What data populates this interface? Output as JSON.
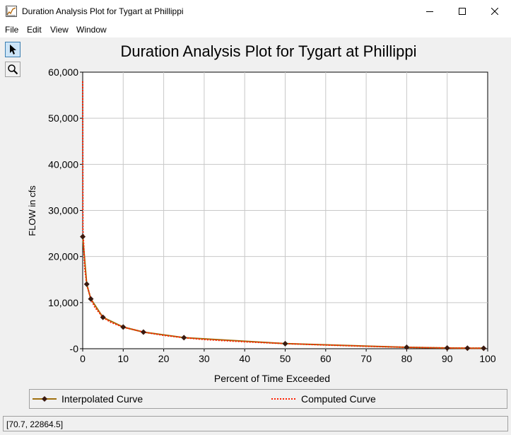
{
  "window": {
    "title": "Duration Analysis Plot for Tygart at Phillippi",
    "minimize_icon": "minimize-icon",
    "maximize_icon": "maximize-icon",
    "close_icon": "close-icon"
  },
  "menu": [
    "File",
    "Edit",
    "View",
    "Window"
  ],
  "toolbar": {
    "pointer_icon": "pointer-arrow-icon",
    "zoom_icon": "magnifier-icon"
  },
  "colors": {
    "interpolated": "#a07010",
    "computed": "#ff2000",
    "marker": "#3a1a10",
    "grid": "#c8c8c8",
    "active_tool": "#cce4f7"
  },
  "chart_data": {
    "type": "line",
    "title": "Duration Analysis Plot for Tygart at Phillippi",
    "xlabel": "Percent of Time Exceeded",
    "ylabel": "FLOW in cfs",
    "xlim": [
      0,
      100
    ],
    "ylim": [
      0,
      60000
    ],
    "x_ticks": [
      "0",
      "10",
      "20",
      "30",
      "40",
      "50",
      "60",
      "70",
      "80",
      "90",
      "100"
    ],
    "y_ticks": [
      "-0",
      "10,000",
      "20,000",
      "30,000",
      "40,000",
      "50,000",
      "60,000"
    ],
    "grid": true,
    "legend_placement": "bottom",
    "series": [
      {
        "name": "Interpolated Curve",
        "style": "solid-with-diamond-markers",
        "points": [
          [
            0.01,
            24300
          ],
          [
            1,
            14000
          ],
          [
            2,
            10800
          ],
          [
            5,
            6800
          ],
          [
            10,
            4700
          ],
          [
            15,
            3600
          ],
          [
            25,
            2400
          ],
          [
            50,
            1100
          ],
          [
            80,
            300
          ],
          [
            90,
            150
          ],
          [
            95,
            120
          ],
          [
            99,
            100
          ]
        ]
      },
      {
        "name": "Computed Curve",
        "style": "dotted",
        "points": [
          [
            0,
            58000
          ],
          [
            0.05,
            26000
          ],
          [
            0.5,
            17500
          ],
          [
            1,
            14000
          ],
          [
            2,
            10800
          ],
          [
            3,
            9000
          ],
          [
            5,
            6800
          ],
          [
            7,
            5700
          ],
          [
            10,
            4700
          ],
          [
            15,
            3600
          ],
          [
            20,
            2900
          ],
          [
            25,
            2400
          ],
          [
            30,
            2000
          ],
          [
            40,
            1500
          ],
          [
            50,
            1100
          ],
          [
            60,
            800
          ],
          [
            70,
            520
          ],
          [
            80,
            300
          ],
          [
            90,
            150
          ],
          [
            95,
            120
          ],
          [
            99,
            100
          ]
        ]
      }
    ]
  },
  "status": {
    "cursor_readout": "[70.7, 22864.5]"
  }
}
